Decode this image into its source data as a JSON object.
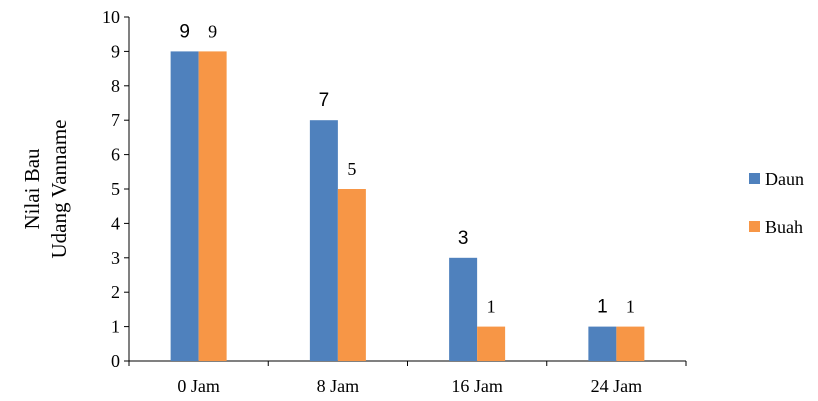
{
  "chart_data": {
    "type": "bar",
    "categories": [
      "0 Jam",
      "8 Jam",
      "16 Jam",
      "24 Jam"
    ],
    "series": [
      {
        "name": "Daun",
        "values": [
          9,
          7,
          3,
          1
        ],
        "color": "#4F81BD"
      },
      {
        "name": "Buah",
        "values": [
          9,
          5,
          1,
          1
        ],
        "color": "#F79646"
      }
    ],
    "title": "",
    "xlabel": "",
    "ylabel": [
      "Nilai Bau",
      "Udang Vanname"
    ],
    "ylim": [
      0,
      10
    ],
    "yticks": [
      "0",
      "1",
      "2",
      "3",
      "4",
      "5",
      "6",
      "7",
      "8",
      "9",
      "10"
    ],
    "data_labels": [
      [
        "9",
        "7",
        "3",
        "1"
      ],
      [
        "9",
        "5",
        "1",
        "1"
      ]
    ],
    "grid": false,
    "legend_position": "right"
  }
}
